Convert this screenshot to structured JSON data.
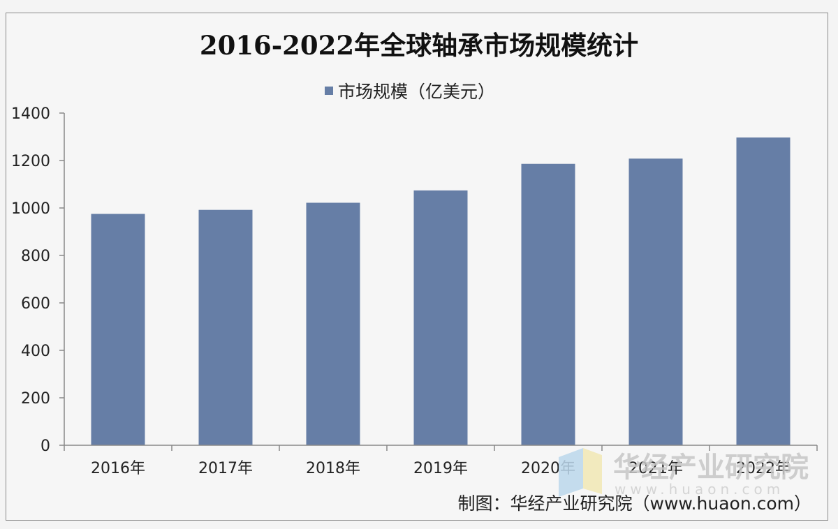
{
  "chart_data": {
    "type": "bar",
    "title": "2016-2022年全球轴承市场规模统计",
    "categories": [
      "2016年",
      "2017年",
      "2018年",
      "2019年",
      "2020年",
      "2021年",
      "2022年"
    ],
    "series": [
      {
        "name": "市场规模（亿美元）",
        "values": [
          975,
          992,
          1022,
          1074,
          1186,
          1208,
          1297
        ],
        "color": "#667ea6"
      }
    ],
    "ylim": [
      0,
      1400
    ],
    "yticks": [
      "0",
      "200",
      "400",
      "600",
      "800",
      "1000",
      "1200",
      "1400"
    ],
    "legend_position": "top-center",
    "grid": false
  },
  "credit": "制图：华经产业研究院（www.huaon.com）",
  "watermark": {
    "name": "华经产业研究院",
    "url": "www.huaon.com"
  }
}
